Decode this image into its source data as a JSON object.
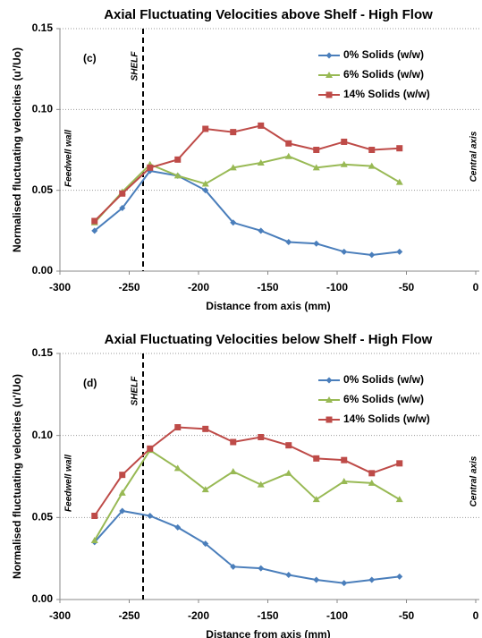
{
  "chart_data": [
    {
      "type": "line",
      "title": "Axial Fluctuating Velocities above Shelf - High Flow",
      "x_label": "Distance from axis (mm)",
      "y_label": "Normalised fluctuating velocities (u'/Uo)",
      "panel_label": "(c)",
      "shelf_label": "SHELF",
      "shelf_x": -240,
      "left_label": "Feedwell wall",
      "right_label": "Central axis",
      "x": [
        -275,
        -255,
        -235,
        -215,
        -195,
        -175,
        -155,
        -135,
        -115,
        -95,
        -75,
        -55
      ],
      "series": [
        {
          "name": "0% Solids (w/w)",
          "color": "#4a7ebb",
          "marker": "diamond",
          "values": [
            0.025,
            0.039,
            0.062,
            0.059,
            0.05,
            0.03,
            0.025,
            0.018,
            0.017,
            0.012,
            0.01,
            0.012
          ]
        },
        {
          "name": "6% Solids (w/w)",
          "color": "#98b954",
          "marker": "triangle",
          "values": [
            0.03,
            0.049,
            0.066,
            0.059,
            0.054,
            0.064,
            0.067,
            0.071,
            0.064,
            0.066,
            0.065,
            0.055
          ]
        },
        {
          "name": "14% Solids (w/w)",
          "color": "#be4b48",
          "marker": "square",
          "values": [
            0.031,
            0.048,
            0.064,
            0.069,
            0.088,
            0.086,
            0.09,
            0.079,
            0.075,
            0.08,
            0.075,
            0.076
          ]
        }
      ],
      "xlim": [
        -300,
        0
      ],
      "xticks": [
        -300,
        -250,
        -200,
        -150,
        -100,
        -50,
        0
      ],
      "ylim": [
        0,
        0.15
      ],
      "yticks": [
        {
          "value": 0,
          "label": "0.00"
        },
        {
          "value": 0.05,
          "label": "0.05"
        },
        {
          "value": 0.1,
          "label": "0.10"
        },
        {
          "value": 0.15,
          "label": "0.15"
        }
      ],
      "grid": true,
      "legend": "top-right"
    },
    {
      "type": "line",
      "title": "Axial Fluctuating Velocities below Shelf - High Flow",
      "x_label": "Distance from axis (mm)",
      "y_label": "Normalised fluctuating velocities (u'/Uo)",
      "panel_label": "(d)",
      "shelf_label": "SHELF",
      "shelf_x": -240,
      "left_label": "Feedwell wall",
      "right_label": "Central axis",
      "x": [
        -275,
        -255,
        -235,
        -215,
        -195,
        -175,
        -155,
        -135,
        -115,
        -95,
        -75,
        -55
      ],
      "series": [
        {
          "name": "0% Solids (w/w)",
          "color": "#4a7ebb",
          "marker": "diamond",
          "values": [
            0.035,
            0.054,
            0.051,
            0.044,
            0.034,
            0.02,
            0.019,
            0.015,
            0.012,
            0.01,
            0.012,
            0.014
          ]
        },
        {
          "name": "6% Solids (w/w)",
          "color": "#98b954",
          "marker": "triangle",
          "values": [
            0.036,
            0.065,
            0.091,
            0.08,
            0.067,
            0.078,
            0.07,
            0.077,
            0.061,
            0.072,
            0.071,
            0.061
          ]
        },
        {
          "name": "14% Solids (w/w)",
          "color": "#be4b48",
          "marker": "square",
          "values": [
            0.051,
            0.076,
            0.092,
            0.105,
            0.104,
            0.096,
            0.099,
            0.094,
            0.086,
            0.085,
            0.077,
            0.083
          ]
        }
      ],
      "xlim": [
        -300,
        0
      ],
      "xticks": [
        -300,
        -250,
        -200,
        -150,
        -100,
        -50,
        0
      ],
      "ylim": [
        0,
        0.15
      ],
      "yticks": [
        {
          "value": 0,
          "label": "0.00"
        },
        {
          "value": 0.05,
          "label": "0.05"
        },
        {
          "value": 0.1,
          "label": "0.10"
        },
        {
          "value": 0.15,
          "label": "0.15"
        }
      ],
      "grid": true,
      "legend": "top-right"
    }
  ]
}
